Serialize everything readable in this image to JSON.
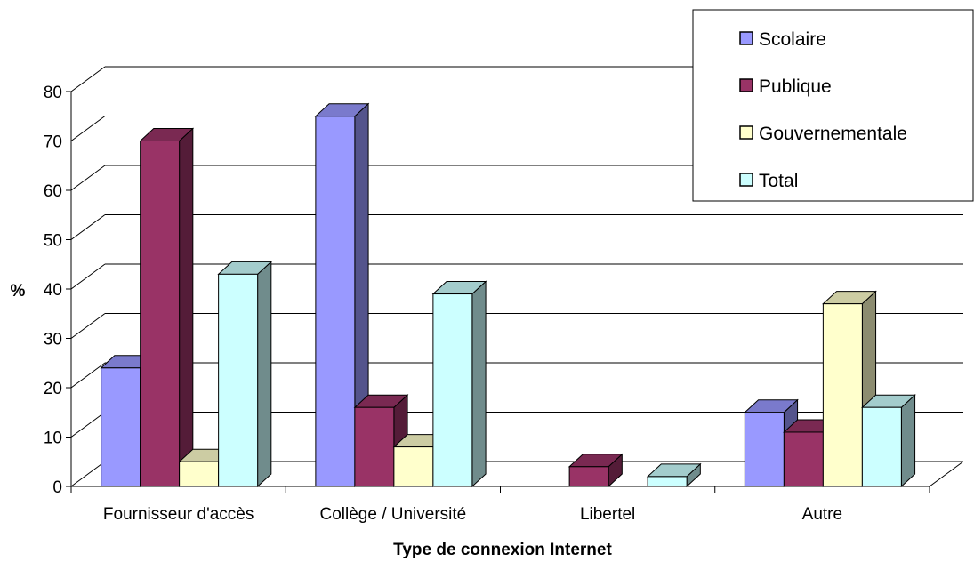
{
  "chart_data": {
    "type": "bar",
    "categories": [
      "Fournisseur d'accès",
      "Collège / Université",
      "Libertel",
      "Autre"
    ],
    "series": [
      {
        "name": "Scolaire",
        "values": [
          24,
          75,
          0,
          15
        ],
        "color": "#9999ff"
      },
      {
        "name": "Publique",
        "values": [
          70,
          16,
          4,
          11
        ],
        "color": "#993366"
      },
      {
        "name": "Gouvernementale",
        "values": [
          5,
          8,
          0,
          37
        ],
        "color": "#ffffcc"
      },
      {
        "name": "Total",
        "values": [
          43,
          39,
          2,
          16
        ],
        "color": "#ccffff"
      }
    ],
    "title": "",
    "xlabel": "Type de connexion Internet",
    "ylabel": "%",
    "ylim": [
      0,
      80
    ],
    "yticks": [
      0,
      10,
      20,
      30,
      40,
      50,
      60,
      70,
      80
    ],
    "grid": true,
    "legend_position": "top-right",
    "style": "3d-clustered-column"
  }
}
